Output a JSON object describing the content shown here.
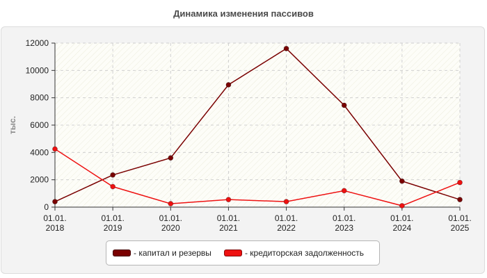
{
  "chart_data": {
    "type": "line",
    "title": "Динамика изменения пассивов",
    "ylabel": "тыс.",
    "xlabel": "",
    "categories": [
      "01.01.\n2018",
      "01.01.\n2019",
      "01.01.\n2020",
      "01.01.\n2021",
      "01.01.\n2022",
      "01.01.\n2023",
      "01.01.\n2024",
      "01.01.\n2025"
    ],
    "ylim": [
      0,
      12000
    ],
    "yticks": [
      "0",
      "2000",
      "4000",
      "6000",
      "8000",
      "10000",
      "12000"
    ],
    "grid": true,
    "legend_position": "bottom",
    "series": [
      {
        "name": "- капитал и резервы",
        "color": "#7a0000",
        "values": [
          400,
          2350,
          3600,
          8950,
          11600,
          7450,
          1900,
          550
        ]
      },
      {
        "name": "- кредиторская задолженность",
        "color": "#ee1111",
        "values": [
          4250,
          1500,
          250,
          550,
          400,
          1200,
          100,
          1800
        ]
      }
    ]
  }
}
